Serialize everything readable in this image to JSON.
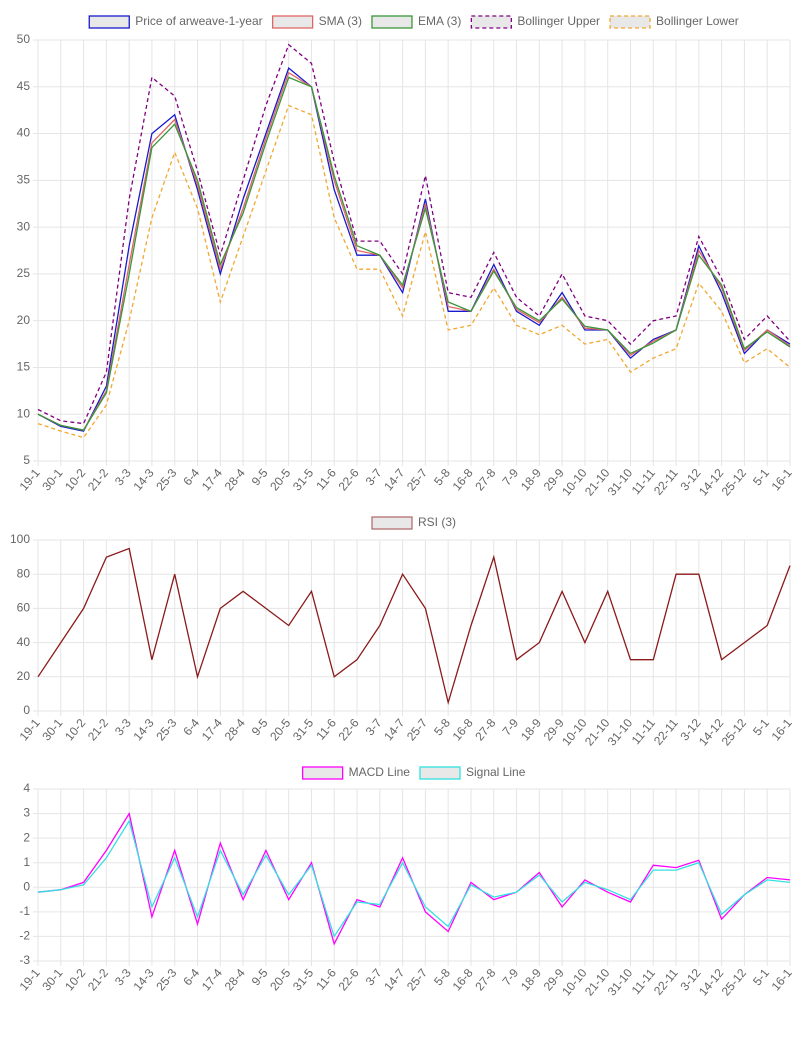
{
  "chart_data": [
    {
      "type": "line",
      "legend": "top",
      "categories": [
        "19-1",
        "30-1",
        "10-2",
        "21-2",
        "3-3",
        "14-3",
        "25-3",
        "6-4",
        "17-4",
        "28-4",
        "9-5",
        "20-5",
        "31-5",
        "11-6",
        "22-6",
        "3-7",
        "14-7",
        "25-7",
        "5-8",
        "16-8",
        "27-8",
        "7-9",
        "18-9",
        "29-9",
        "10-10",
        "21-10",
        "31-10",
        "11-11",
        "22-11",
        "3-12",
        "14-12",
        "25-12",
        "5-1",
        "16-1"
      ],
      "ylim": [
        5,
        50
      ],
      "yticks": [
        5,
        10,
        15,
        20,
        25,
        30,
        35,
        40,
        45,
        50
      ],
      "grid": true,
      "series": [
        {
          "name": "Price of arweave-1-year",
          "color": "#1a1acc",
          "dashed": false,
          "values": [
            10,
            8.7,
            8.2,
            13,
            28,
            40,
            42,
            34,
            25,
            33,
            40,
            47,
            45,
            34,
            27,
            27,
            23,
            33,
            21,
            21,
            26,
            21,
            19.5,
            23,
            19,
            19,
            16,
            18,
            19,
            28,
            23,
            16.5,
            19,
            17.5
          ]
        },
        {
          "name": "SMA (3)",
          "color": "#e06666",
          "dashed": false,
          "values": [
            10,
            8.8,
            8.3,
            12.5,
            26,
            39,
            41.5,
            34.5,
            25.5,
            32,
            39.5,
            46.5,
            45,
            35,
            27.5,
            27,
            23.5,
            32.5,
            21.5,
            21,
            25.5,
            21.2,
            19.8,
            22.5,
            19.2,
            19,
            16.3,
            17.8,
            19,
            27.5,
            23.5,
            16.8,
            19,
            17.3
          ]
        },
        {
          "name": "EMA (3)",
          "color": "#3a963a",
          "dashed": false,
          "values": [
            10,
            8.8,
            8.3,
            12.3,
            25,
            38.5,
            41,
            35,
            26,
            31.5,
            39,
            46,
            45,
            35.5,
            28,
            27,
            23.8,
            32,
            22,
            21,
            25.3,
            21.4,
            20,
            22.3,
            19.4,
            19,
            16.5,
            17.6,
            19,
            27,
            23.8,
            17,
            18.8,
            17.2
          ]
        },
        {
          "name": "Bollinger Upper",
          "color": "#800080",
          "dashed": true,
          "values": [
            10.5,
            9.3,
            9,
            14.5,
            33,
            46,
            44,
            36,
            27,
            35,
            43,
            49.5,
            47.5,
            37,
            28.5,
            28.5,
            25,
            35.5,
            23,
            22.5,
            27.3,
            22.5,
            20.5,
            25,
            20.5,
            20,
            17.5,
            20,
            20.5,
            29,
            24.5,
            18,
            20.5,
            17.8
          ]
        },
        {
          "name": "Bollinger Lower",
          "color": "#f0a830",
          "dashed": true,
          "values": [
            9,
            8.2,
            7.5,
            11,
            20,
            31,
            38,
            32,
            22,
            29,
            36,
            43,
            42,
            31,
            25.5,
            25.5,
            20.5,
            29.5,
            19,
            19.5,
            23.5,
            19.5,
            18.5,
            19.5,
            17.5,
            18,
            14.5,
            16,
            17,
            24,
            21,
            15.5,
            17,
            15
          ]
        }
      ]
    },
    {
      "type": "line",
      "legend": "top",
      "categories": [
        "19-1",
        "30-1",
        "10-2",
        "21-2",
        "3-3",
        "14-3",
        "25-3",
        "6-4",
        "17-4",
        "28-4",
        "9-5",
        "20-5",
        "31-5",
        "11-6",
        "22-6",
        "3-7",
        "14-7",
        "25-7",
        "5-8",
        "16-8",
        "27-8",
        "7-9",
        "18-9",
        "29-9",
        "10-10",
        "21-10",
        "31-10",
        "11-11",
        "22-11",
        "3-12",
        "14-12",
        "25-12",
        "5-1",
        "16-1"
      ],
      "ylim": [
        0,
        100
      ],
      "yticks": [
        0,
        20,
        40,
        60,
        80,
        100
      ],
      "grid": true,
      "series": [
        {
          "name": "RSI (3)",
          "color": "#8b1a1a",
          "legend_color": "#b07070",
          "dashed": false,
          "values": [
            20,
            40,
            60,
            90,
            95,
            30,
            80,
            20,
            60,
            70,
            60,
            50,
            70,
            20,
            30,
            50,
            80,
            60,
            5,
            50,
            90,
            30,
            40,
            70,
            40,
            70,
            30,
            30,
            80,
            80,
            30,
            40,
            50,
            85
          ]
        }
      ]
    },
    {
      "type": "line",
      "legend": "top",
      "categories": [
        "19-1",
        "30-1",
        "10-2",
        "21-2",
        "3-3",
        "14-3",
        "25-3",
        "6-4",
        "17-4",
        "28-4",
        "9-5",
        "20-5",
        "31-5",
        "11-6",
        "22-6",
        "3-7",
        "14-7",
        "25-7",
        "5-8",
        "16-8",
        "27-8",
        "7-9",
        "18-9",
        "29-9",
        "10-10",
        "21-10",
        "31-10",
        "11-11",
        "22-11",
        "3-12",
        "14-12",
        "25-12",
        "5-1",
        "16-1"
      ],
      "ylim": [
        -3,
        4
      ],
      "yticks": [
        -3,
        -2,
        -1,
        0,
        1,
        2,
        3,
        4
      ],
      "grid": true,
      "series": [
        {
          "name": "MACD Line",
          "color": "#ff00ff",
          "dashed": false,
          "values": [
            -0.2,
            -0.1,
            0.2,
            1.5,
            3.0,
            -1.2,
            1.5,
            -1.5,
            1.8,
            -0.5,
            1.5,
            -0.5,
            1,
            -2.3,
            -0.5,
            -0.8,
            1.2,
            -1.0,
            -1.8,
            0.2,
            -0.5,
            -0.2,
            0.6,
            -0.8,
            0.3,
            -0.2,
            -0.6,
            0.9,
            0.8,
            1.1,
            -1.3,
            -0.3,
            0.4,
            0.3
          ]
        },
        {
          "name": "Signal Line",
          "color": "#33e0e0",
          "dashed": false,
          "values": [
            -0.2,
            -0.1,
            0.1,
            1.2,
            2.7,
            -0.8,
            1.2,
            -1.2,
            1.5,
            -0.3,
            1.3,
            -0.3,
            0.9,
            -2.0,
            -0.6,
            -0.7,
            1.0,
            -0.8,
            -1.6,
            0.1,
            -0.4,
            -0.2,
            0.5,
            -0.6,
            0.2,
            -0.1,
            -0.5,
            0.7,
            0.7,
            1.0,
            -1.1,
            -0.3,
            0.3,
            0.2
          ]
        }
      ]
    }
  ]
}
